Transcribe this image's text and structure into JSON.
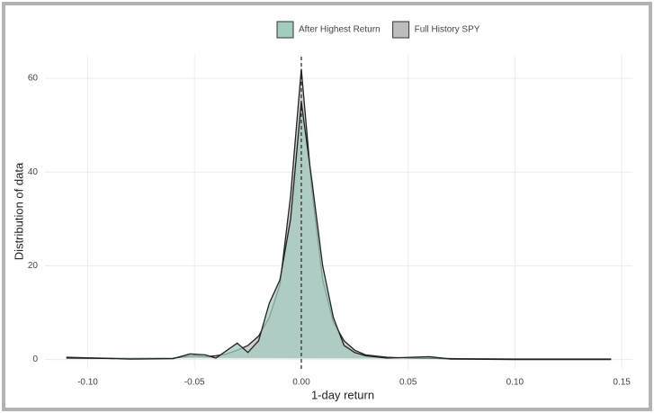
{
  "chart_data": {
    "type": "density",
    "xlabel": "1-day return",
    "ylabel": "Distribution of data",
    "xlim": [
      -0.12,
      0.155
    ],
    "ylim": [
      -2,
      65
    ],
    "xticks": [
      {
        "value": -0.1,
        "label": "-0.10"
      },
      {
        "value": -0.05,
        "label": "-0.05"
      },
      {
        "value": 0,
        "label": "0.00"
      },
      {
        "value": 0.05,
        "label": "0.05"
      },
      {
        "value": 0.1,
        "label": "0.10"
      },
      {
        "value": 0.15,
        "label": "0.15"
      }
    ],
    "yticks": [
      0,
      20,
      40,
      60
    ],
    "grid": true,
    "vline": 0,
    "legend": "top",
    "series": [
      {
        "name": "Full History SPY",
        "color": "#bdbdbd",
        "x": [
          -0.11,
          -0.08,
          -0.06,
          -0.05,
          -0.045,
          -0.04,
          -0.035,
          -0.03,
          -0.025,
          -0.02,
          -0.015,
          -0.01,
          -0.005,
          0,
          0.005,
          0.01,
          0.015,
          0.02,
          0.025,
          0.03,
          0.04,
          0.05,
          0.07,
          0.1,
          0.145
        ],
        "values": [
          0.3,
          0.2,
          0.3,
          0.8,
          0.6,
          0.8,
          1.2,
          2,
          3,
          5,
          9,
          16,
          35,
          62,
          36,
          17,
          8,
          4,
          2,
          1,
          0.5,
          0.3,
          0.2,
          0.1,
          0.1
        ]
      },
      {
        "name": "After Highest Return",
        "color": "#a3cbc0",
        "x": [
          -0.11,
          -0.08,
          -0.06,
          -0.052,
          -0.045,
          -0.04,
          -0.03,
          -0.025,
          -0.02,
          -0.015,
          -0.01,
          -0.005,
          0,
          0.005,
          0.01,
          0.015,
          0.02,
          0.025,
          0.03,
          0.04,
          0.06,
          0.07,
          0.1,
          0.145
        ],
        "values": [
          0.5,
          0.1,
          0.2,
          1.2,
          1,
          0.3,
          3.5,
          1.5,
          4,
          12,
          17,
          30,
          55,
          38,
          20,
          9,
          3,
          1.5,
          0.8,
          0.3,
          0.6,
          0.1,
          0,
          0
        ]
      }
    ]
  }
}
